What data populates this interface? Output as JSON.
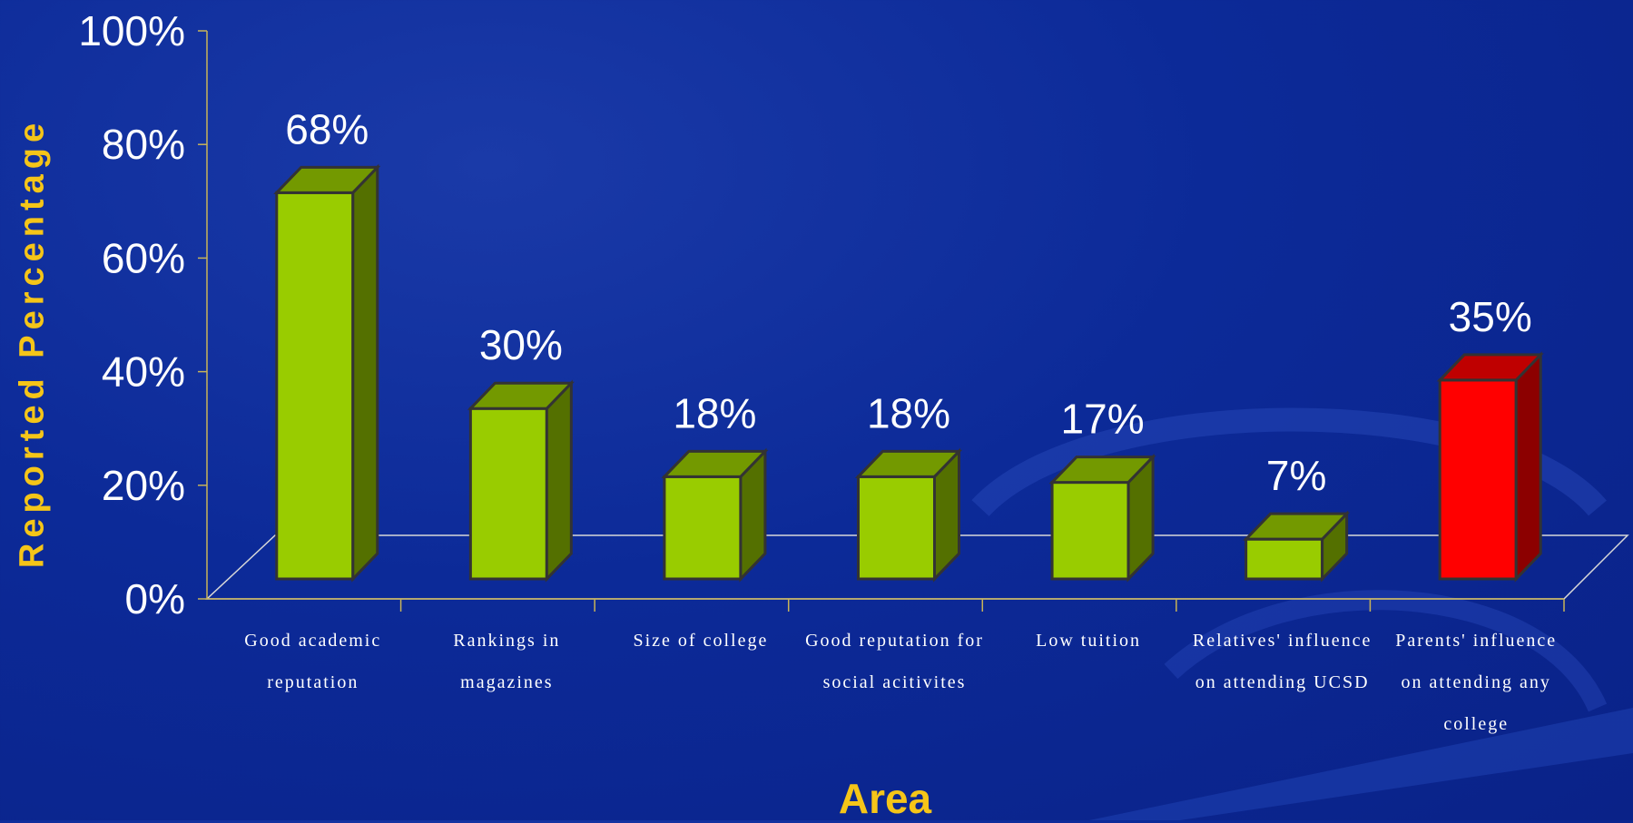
{
  "chart_data": {
    "type": "bar",
    "ylabel": "Reported Percentage",
    "xlabel": "Area",
    "ylim": [
      0,
      100
    ],
    "yticks": [
      "0%",
      "20%",
      "40%",
      "60%",
      "80%",
      "100%"
    ],
    "categories": [
      [
        "Good academic",
        "reputation"
      ],
      [
        "Rankings in",
        "magazines"
      ],
      [
        "Size of college"
      ],
      [
        "Good reputation for",
        "social acitivites"
      ],
      [
        "Low tuition"
      ],
      [
        "Relatives' influence",
        "on attending UCSD"
      ],
      [
        "Parents' influence",
        "on attending any",
        "college"
      ]
    ],
    "values": [
      68,
      30,
      18,
      18,
      17,
      7,
      35
    ],
    "data_labels": [
      "68%",
      "30%",
      "18%",
      "18%",
      "17%",
      "7%",
      "35%"
    ],
    "bar_colors": [
      "#99cc00",
      "#99cc00",
      "#99cc00",
      "#99cc00",
      "#99cc00",
      "#99cc00",
      "#ff0000"
    ],
    "grid": false
  }
}
